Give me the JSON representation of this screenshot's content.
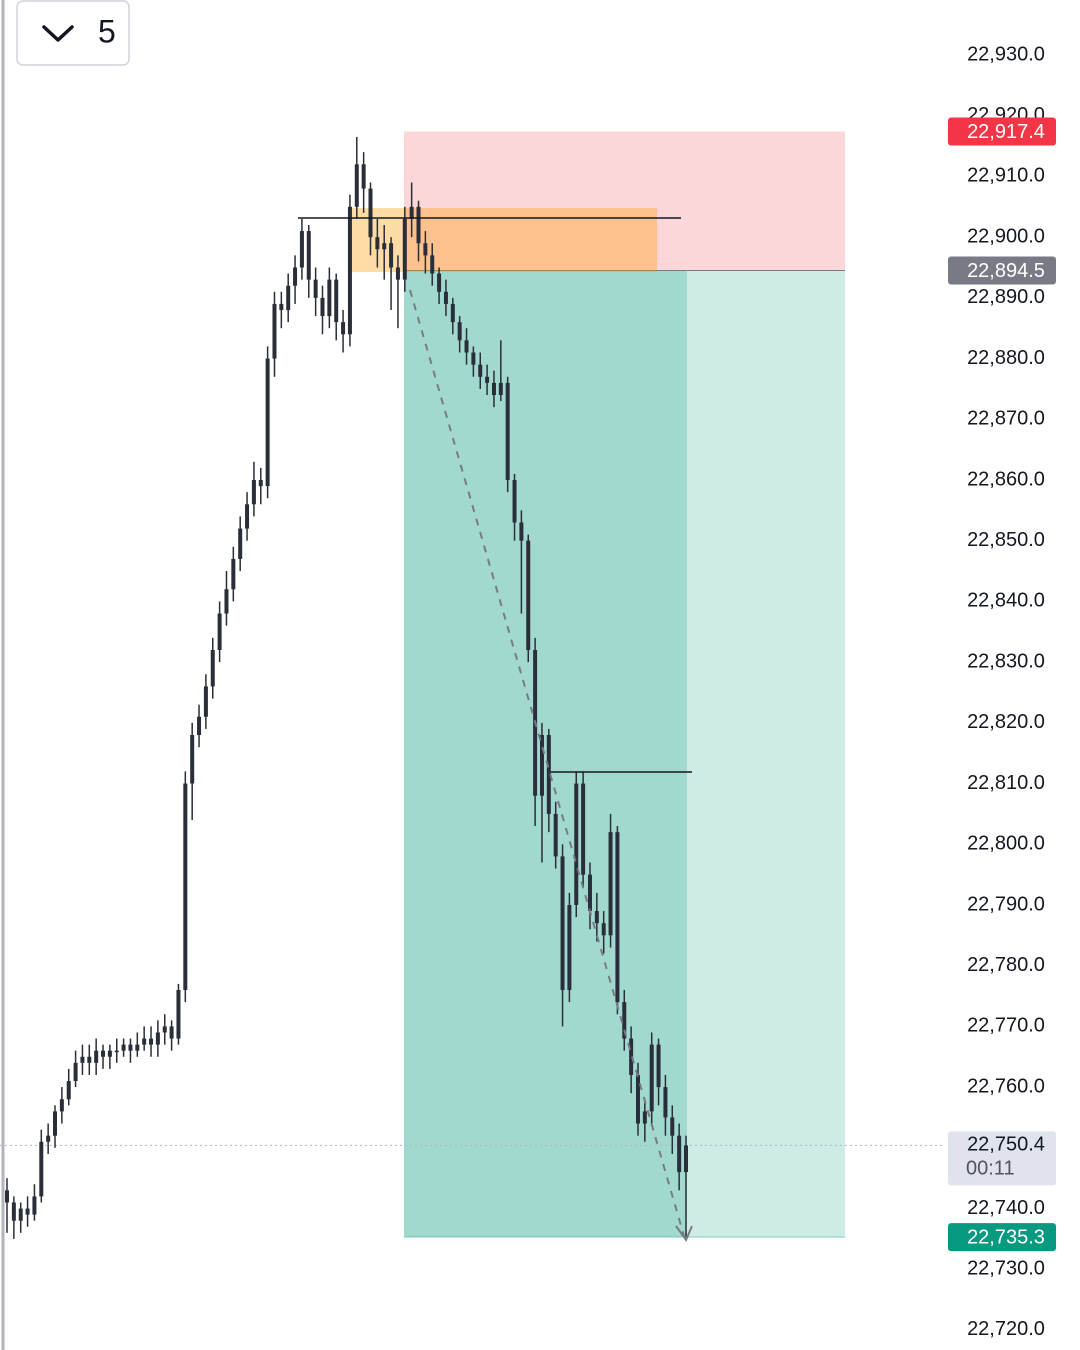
{
  "chart_data": {
    "type": "candlestick",
    "interval": "5",
    "color": "#2a2e39",
    "ylim": [
      22716.7,
      22939.06
    ],
    "yticks": [
      {
        "value": 22930,
        "label": "22,930.0"
      },
      {
        "value": 22920,
        "label": "22,920.0"
      },
      {
        "value": 22910,
        "label": "22,910.0"
      },
      {
        "value": 22900,
        "label": "22,900.0"
      },
      {
        "value": 22890,
        "label": "22,890.0"
      },
      {
        "value": 22880,
        "label": "22,880.0"
      },
      {
        "value": 22870,
        "label": "22,870.0"
      },
      {
        "value": 22860,
        "label": "22,860.0"
      },
      {
        "value": 22850,
        "label": "22,850.0"
      },
      {
        "value": 22840,
        "label": "22,840.0"
      },
      {
        "value": 22830,
        "label": "22,830.0"
      },
      {
        "value": 22820,
        "label": "22,820.0"
      },
      {
        "value": 22810,
        "label": "22,810.0"
      },
      {
        "value": 22800,
        "label": "22,800.0"
      },
      {
        "value": 22790,
        "label": "22,790.0"
      },
      {
        "value": 22780,
        "label": "22,780.0"
      },
      {
        "value": 22770,
        "label": "22,770.0"
      },
      {
        "value": 22760,
        "label": "22,760.0"
      },
      {
        "value": 22750,
        "label": "22,750.0"
      },
      {
        "value": 22740,
        "label": "22,740.0"
      },
      {
        "value": 22730,
        "label": "22,730.0"
      },
      {
        "value": 22720,
        "label": "22,720.0"
      }
    ],
    "open": [
      22743,
      22741,
      22738,
      22740,
      22739,
      22742,
      22751,
      22752,
      22756,
      22758,
      22761,
      22764,
      22765,
      22764,
      22766,
      22765,
      22766,
      22766,
      22767,
      22766,
      22767,
      22768,
      22767,
      22769,
      22770,
      22768,
      22776,
      22810,
      22818,
      22821,
      22826,
      22832,
      22838,
      22842,
      22847,
      22852,
      22856,
      22860,
      22859,
      22880,
      22889,
      22888,
      22892,
      22895,
      22901,
      22893,
      22890,
      22887,
      22893,
      22886,
      22884,
      22905,
      22912,
      22908,
      22900,
      22898,
      22899,
      22895,
      22893,
      22903,
      22905,
      22899,
      22897,
      22894,
      22891,
      22889,
      22886,
      22883,
      22881,
      22879,
      22877,
      22876,
      22874,
      22876,
      22860,
      22853,
      22850,
      22832,
      22808,
      22818,
      22805,
      22798,
      22776,
      22790,
      22810,
      22795,
      22789,
      22787,
      22785,
      22802,
      22774,
      22768,
      22762,
      22754,
      22756,
      22767,
      22760,
      22755,
      22752,
      22746
    ],
    "high": [
      22745,
      22742,
      22741,
      22742,
      22744,
      22753,
      22754,
      22757,
      22760,
      22763,
      22766,
      22767,
      22767,
      22768,
      22767,
      22767,
      22768,
      22768,
      22768,
      22769,
      22770,
      22770,
      22771,
      22772,
      22771,
      22777,
      22812,
      22820,
      22823,
      22828,
      22834,
      22840,
      22845,
      22849,
      22854,
      22858,
      22863,
      22862,
      22882,
      22891,
      22891,
      22894,
      22897,
      22903,
      22902,
      22895,
      22892,
      22895,
      22894,
      22888,
      22907,
      22916.5,
      22914,
      22909,
      22903,
      22902,
      22900,
      22897,
      22905,
      22909,
      22906,
      22901,
      22899,
      22895,
      22893,
      22890,
      22887,
      22885,
      22882,
      22881,
      22879,
      22878,
      22883,
      22877,
      22861,
      22855,
      22851,
      22834,
      22820,
      22819,
      22807,
      22800,
      22792,
      22812,
      22812,
      22797,
      22792,
      22789,
      22805,
      22803,
      22776,
      22770,
      22764,
      22758,
      22769,
      22768,
      22762,
      22757,
      22754,
      22752
    ],
    "low": [
      22736,
      22735,
      22736,
      22737,
      22738,
      22741,
      22749,
      22750,
      22754,
      22757,
      22760,
      22762,
      22762,
      22762,
      22763,
      22763,
      22764,
      22765,
      22764,
      22765,
      22766,
      22765,
      22765,
      22767,
      22766,
      22767,
      22774,
      22804,
      22816,
      22819,
      22824,
      22830,
      22836,
      22840,
      22845,
      22850,
      22854,
      22856,
      22857,
      22877,
      22885,
      22886,
      22889,
      22893,
      22890,
      22887,
      22884,
      22885,
      22883,
      22881,
      22882,
      22903,
      22904,
      22897,
      22895,
      22893,
      22888,
      22885,
      22891,
      22900,
      22896,
      22894,
      22892,
      22889,
      22887,
      22884,
      22881,
      22879,
      22877,
      22875,
      22874,
      22872,
      22873,
      22858,
      22850,
      22838,
      22830,
      22803,
      22797,
      22802,
      22796,
      22770,
      22774,
      22788,
      22793,
      22786,
      22784,
      22782,
      22783,
      22772,
      22766,
      22759,
      22752,
      22751,
      22754,
      22757,
      22752,
      22749,
      22743,
      22735.3
    ],
    "close": [
      22741,
      22738,
      22740,
      22739,
      22742,
      22751,
      22752,
      22756,
      22758,
      22761,
      22764,
      22765,
      22764,
      22766,
      22765,
      22766,
      22766,
      22767,
      22766,
      22767,
      22768,
      22767,
      22769,
      22770,
      22768,
      22776,
      22810,
      22818,
      22821,
      22826,
      22832,
      22838,
      22842,
      22847,
      22852,
      22856,
      22860,
      22859,
      22880,
      22889,
      22888,
      22892,
      22895,
      22901,
      22893,
      22890,
      22887,
      22893,
      22886,
      22884,
      22905,
      22912,
      22908,
      22900,
      22898,
      22899,
      22895,
      22893,
      22903,
      22905,
      22899,
      22897,
      22894,
      22891,
      22889,
      22886,
      22883,
      22881,
      22879,
      22877,
      22876,
      22874,
      22876,
      22860,
      22853,
      22850,
      22832,
      22808,
      22818,
      22805,
      22798,
      22776,
      22790,
      22810,
      22795,
      22789,
      22787,
      22785,
      22802,
      22774,
      22768,
      22762,
      22754,
      22756,
      22767,
      22760,
      22755,
      22752,
      22746,
      22750.4
    ],
    "position": {
      "stop": {
        "value": 22917.4,
        "label": "22,917.4",
        "color": "#f23645"
      },
      "entry": {
        "value": 22894.5,
        "label": "22,894.5",
        "color": "#787b86"
      },
      "target": {
        "value": 22735.3,
        "label": "22,735.3",
        "color": "#089981"
      }
    },
    "last_price": {
      "value": 22750.4,
      "label": "22,750.4",
      "countdown": "00:11"
    }
  }
}
